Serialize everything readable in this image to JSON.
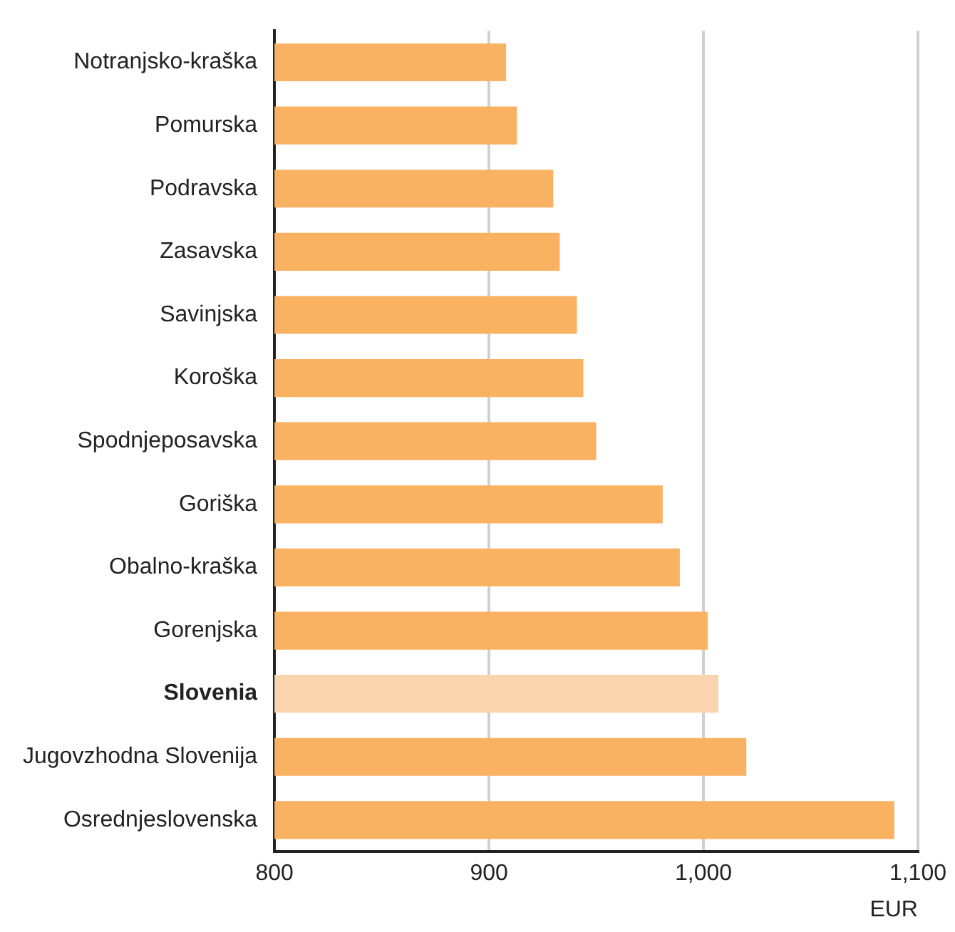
{
  "chart_data": {
    "type": "bar",
    "orientation": "horizontal",
    "xlabel": "EUR",
    "categories": [
      "Notranjsko-kraška",
      "Pomurska",
      "Podravska",
      "Zasavska",
      "Savinjska",
      "Koroška",
      "Spodnjeposavska",
      "Goriška",
      "Obalno-kraška",
      "Gorenjska",
      "Slovenia",
      "Jugovzhodna Slovenija",
      "Osrednjeslovenska"
    ],
    "values": [
      908,
      913,
      930,
      933,
      941,
      944,
      950,
      981,
      989,
      1002,
      1007,
      1020,
      1089
    ],
    "colors": [
      "#f9b162",
      "#f9b162",
      "#f9b162",
      "#f9b162",
      "#f9b162",
      "#f9b162",
      "#f9b162",
      "#f9b162",
      "#f9b162",
      "#f9b162",
      "#f8d5ae",
      "#f9b162",
      "#f9b162"
    ],
    "xlim": [
      800,
      1100
    ],
    "xticks": [
      800,
      900,
      {
        "value": 1000,
        "label": "1,000"
      },
      {
        "value": 1100,
        "label": "1,100"
      }
    ],
    "grid": "x",
    "legend": false
  }
}
